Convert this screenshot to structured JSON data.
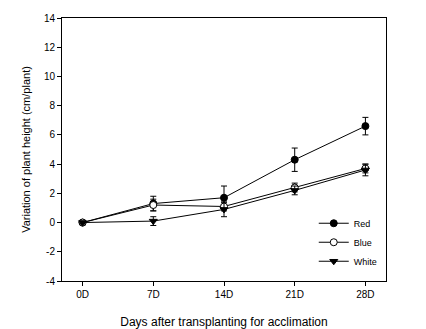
{
  "chart_data": {
    "type": "line",
    "x_label": "Days after transplanting for acclimation",
    "y_label": "Variation of plant height (cm/plant)",
    "categories": [
      "0D",
      "7D",
      "14D",
      "21D",
      "28D"
    ],
    "series": [
      {
        "name": "Red",
        "color": "#000000",
        "marker": "circle",
        "values": [
          0,
          1.3,
          1.7,
          4.3,
          6.6
        ],
        "error": [
          0.1,
          0.5,
          0.8,
          0.8,
          0.6
        ]
      },
      {
        "name": "Blue",
        "color": "#000000",
        "marker": "circle-open",
        "values": [
          0,
          1.2,
          1.1,
          2.4,
          3.7
        ],
        "error": [
          0.1,
          0.4,
          0.3,
          0.3,
          0.3
        ]
      },
      {
        "name": "White",
        "color": "#000000",
        "marker": "triangle-down",
        "values": [
          0,
          0.1,
          0.9,
          2.2,
          3.6
        ],
        "error": [
          0.1,
          0.3,
          0.5,
          0.3,
          0.4
        ]
      }
    ],
    "ylim": [
      -4,
      14
    ],
    "yticks": [
      -4,
      -2,
      0,
      2,
      4,
      6,
      8,
      10,
      12,
      14
    ],
    "grid": false,
    "legend": "lower right"
  }
}
